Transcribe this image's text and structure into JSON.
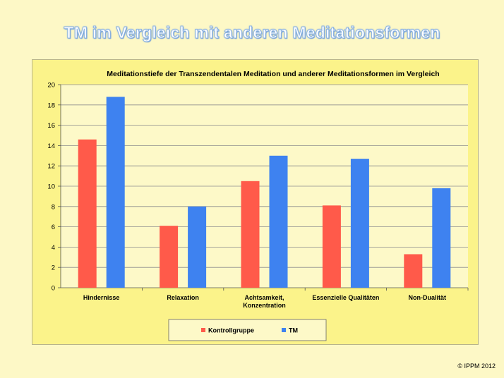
{
  "slide": {
    "title": "TM im Vergleich mit anderen Meditationsformen",
    "copyright": "© IPPM 2012"
  },
  "chart_data": {
    "type": "bar",
    "title": "Meditationstiefe der Transzendentalen Meditation und anderer Meditationsformen im Vergleich",
    "categories": [
      [
        "Hindernisse"
      ],
      [
        "Relaxation"
      ],
      [
        "Achtsamkeit,",
        "Konzentration"
      ],
      [
        "Essenzielle Qualitäten"
      ],
      [
        "Non-Dualität"
      ]
    ],
    "series": [
      {
        "name": "Kontrollgruppe",
        "color": "#ff5a4a",
        "values": [
          14.6,
          6.1,
          10.5,
          8.1,
          3.3
        ]
      },
      {
        "name": "TM",
        "color": "#3e82f0",
        "values": [
          18.8,
          8.0,
          13.0,
          12.7,
          9.8
        ]
      }
    ],
    "ylim": [
      0,
      20
    ],
    "yticks": [
      0,
      2,
      4,
      6,
      8,
      10,
      12,
      14,
      16,
      18,
      20
    ],
    "grid": true,
    "plot_background": "#fdf9c8",
    "legend_position": "bottom"
  }
}
